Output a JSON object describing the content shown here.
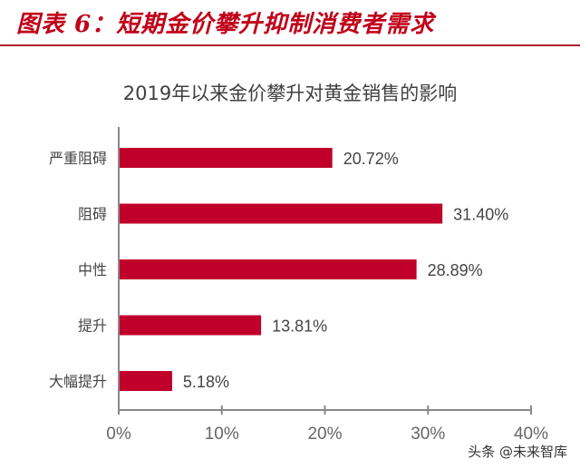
{
  "figure_title": "图表 6：短期金价攀升抑制消费者需求",
  "watermark": "头条 @未来智库",
  "chart_data": {
    "type": "bar",
    "orientation": "horizontal",
    "title": "2019年以来金价攀升对黄金销售的影响",
    "categories": [
      "严重阻碍",
      "阻碍",
      "中性",
      "提升",
      "大幅提升"
    ],
    "values": [
      20.72,
      31.4,
      28.89,
      13.81,
      5.18
    ],
    "value_labels": [
      "20.72%",
      "31.40%",
      "28.89%",
      "13.81%",
      "5.18%"
    ],
    "xlim": [
      0,
      40
    ],
    "x_ticks": [
      "0%",
      "10%",
      "20%",
      "30%",
      "40%"
    ],
    "grid": false,
    "bar_color": "#c0002a",
    "title_color": "#c00018"
  }
}
